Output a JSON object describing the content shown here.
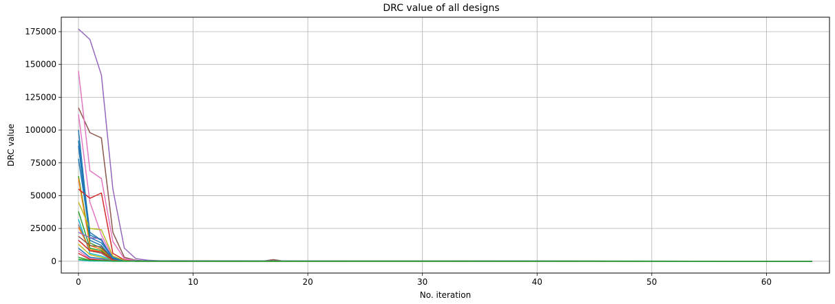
{
  "chart_data": {
    "type": "line",
    "title": "DRC value of all designs",
    "xlabel": "No. iteration",
    "ylabel": "DRC value",
    "xlim": [
      -1.5,
      65.5
    ],
    "ylim": [
      -9000,
      186000
    ],
    "xticks": [
      0,
      10,
      20,
      30,
      40,
      50,
      60
    ],
    "yticks": [
      0,
      25000,
      50000,
      75000,
      100000,
      125000,
      150000,
      175000
    ],
    "grid": true,
    "legend": "none",
    "palette": [
      "#1f77b4",
      "#ff7f0e",
      "#2ca02c",
      "#d62728",
      "#9467bd",
      "#8c564b",
      "#e377c2",
      "#7f7f7f",
      "#bcbd22",
      "#17becf"
    ],
    "series": [
      {
        "color": "#9467bd",
        "x": [
          0,
          1,
          2,
          3,
          4,
          5,
          6,
          7,
          8,
          64
        ],
        "y": [
          177000,
          169000,
          142000,
          55000,
          10000,
          2000,
          800,
          300,
          0,
          0
        ]
      },
      {
        "color": "#8c564b",
        "x": [
          0,
          1,
          2,
          3,
          4,
          5,
          6,
          16,
          17,
          18,
          64
        ],
        "y": [
          117000,
          98000,
          94000,
          22000,
          3000,
          800,
          0,
          0,
          1200,
          0,
          0
        ]
      },
      {
        "color": "#e377c2",
        "x": [
          0,
          1,
          2,
          3,
          4,
          5,
          6,
          64
        ],
        "y": [
          145000,
          69000,
          63000,
          15000,
          2000,
          500,
          0,
          0
        ]
      },
      {
        "color": "#e377c2",
        "x": [
          0,
          1,
          2,
          3,
          4,
          5,
          64
        ],
        "y": [
          112000,
          45000,
          20000,
          3000,
          800,
          0,
          0
        ]
      },
      {
        "color": "#1f77b4",
        "x": [
          0,
          1,
          2,
          3,
          4,
          5,
          64
        ],
        "y": [
          100000,
          18000,
          14000,
          3000,
          500,
          0,
          0
        ]
      },
      {
        "color": "#1f77b4",
        "x": [
          0,
          1,
          2,
          3,
          4,
          64
        ],
        "y": [
          88000,
          16000,
          12000,
          2000,
          300,
          0
        ]
      },
      {
        "color": "#1f77b4",
        "x": [
          0,
          1,
          2,
          3,
          4,
          64
        ],
        "y": [
          78000,
          20000,
          16000,
          2500,
          400,
          0
        ]
      },
      {
        "color": "#2ca02c",
        "x": [
          0,
          1,
          2,
          3,
          4,
          64
        ],
        "y": [
          65000,
          14000,
          10000,
          1500,
          200,
          0
        ]
      },
      {
        "color": "#ff7f0e",
        "x": [
          0,
          1,
          2,
          3,
          4,
          64
        ],
        "y": [
          63000,
          12000,
          9000,
          1200,
          200,
          0
        ]
      },
      {
        "color": "#d62728",
        "x": [
          0,
          1,
          2,
          3,
          4,
          5,
          64
        ],
        "y": [
          55000,
          48000,
          52000,
          6000,
          1000,
          0,
          0
        ]
      },
      {
        "color": "#bcbd22",
        "x": [
          0,
          1,
          2,
          3,
          4,
          5,
          64
        ],
        "y": [
          45000,
          25000,
          24000,
          4000,
          600,
          0,
          0
        ]
      },
      {
        "color": "#2ca02c",
        "x": [
          0,
          1,
          2,
          3,
          4,
          64
        ],
        "y": [
          38000,
          10000,
          8000,
          1000,
          100,
          0
        ]
      },
      {
        "color": "#17becf",
        "x": [
          0,
          1,
          2,
          3,
          4,
          64
        ],
        "y": [
          32000,
          6000,
          4000,
          800,
          100,
          0
        ]
      },
      {
        "color": "#7f7f7f",
        "x": [
          0,
          1,
          2,
          3,
          4,
          64
        ],
        "y": [
          28000,
          8000,
          6000,
          600,
          100,
          0
        ]
      },
      {
        "color": "#ff7f0e",
        "x": [
          0,
          1,
          2,
          3,
          4,
          64
        ],
        "y": [
          26000,
          9000,
          7000,
          700,
          100,
          0
        ]
      },
      {
        "color": "#9467bd",
        "x": [
          0,
          1,
          2,
          3,
          4,
          64
        ],
        "y": [
          22000,
          18000,
          17000,
          1500,
          200,
          0
        ]
      },
      {
        "color": "#8c564b",
        "x": [
          0,
          1,
          2,
          3,
          4,
          64
        ],
        "y": [
          19000,
          12000,
          11000,
          1000,
          100,
          0
        ]
      },
      {
        "color": "#d62728",
        "x": [
          0,
          1,
          2,
          3,
          4,
          64
        ],
        "y": [
          16000,
          8000,
          7000,
          700,
          100,
          0
        ]
      },
      {
        "color": "#bcbd22",
        "x": [
          0,
          1,
          2,
          3,
          64
        ],
        "y": [
          13000,
          5000,
          3000,
          300,
          0
        ]
      },
      {
        "color": "#1f77b4",
        "x": [
          0,
          1,
          2,
          3,
          64
        ],
        "y": [
          10000,
          3000,
          2000,
          200,
          0
        ]
      },
      {
        "color": "#e377c2",
        "x": [
          0,
          1,
          2,
          3,
          64
        ],
        "y": [
          8000,
          2000,
          1000,
          100,
          0
        ]
      },
      {
        "color": "#d62728",
        "x": [
          0,
          1,
          2,
          3,
          64
        ],
        "y": [
          6000,
          1500,
          800,
          100,
          0
        ]
      },
      {
        "color": "#2ca02c",
        "x": [
          0,
          1,
          2,
          3,
          64
        ],
        "y": [
          3000,
          800,
          300,
          0,
          0
        ]
      },
      {
        "color": "#17becf",
        "x": [
          0,
          1,
          2,
          3,
          64
        ],
        "y": [
          1000,
          200,
          100,
          0,
          0
        ]
      },
      {
        "color": "#1f77b4",
        "x": [
          0,
          1,
          2,
          3,
          4,
          64
        ],
        "y": [
          92000,
          22000,
          16000,
          2000,
          200,
          0
        ]
      },
      {
        "color": "#2ca02c",
        "x": [
          0,
          1,
          2,
          3,
          4,
          64
        ],
        "y": [
          1500,
          700,
          500,
          200,
          50,
          0
        ]
      }
    ]
  }
}
